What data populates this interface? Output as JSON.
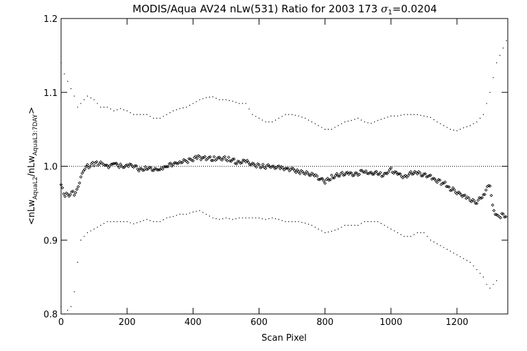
{
  "chart_data": {
    "type": "scatter",
    "title_parts": [
      "MODIS/Aqua AV24 nLw(531) Ratio for 2003 173 ",
      "σ",
      "1",
      "=0.0204"
    ],
    "xlabel": "Scan Pixel",
    "ylabel_parts": [
      "<nLw",
      "AquaL2",
      "/nLw",
      "AquaL3:7DAY",
      ">"
    ],
    "xlim": [
      0,
      1354
    ],
    "ylim": [
      0.8,
      1.2
    ],
    "x_ticks": [
      0,
      200,
      400,
      600,
      800,
      1000,
      1200
    ],
    "x_tick_labels": [
      "0",
      "200",
      "400",
      "600",
      "800",
      "1000",
      "1200"
    ],
    "y_ticks": [
      0.8,
      0.9,
      1.0,
      1.1,
      1.2
    ],
    "y_tick_labels": [
      "0.8",
      "0.9",
      "1.0",
      "1.1",
      "1.2"
    ],
    "reference_line_y": 1.0,
    "grid": false,
    "series": [
      {
        "marker": "diamond",
        "x": [
          0,
          10,
          20,
          30,
          40,
          50,
          60,
          70,
          80,
          100,
          120,
          140,
          160,
          180,
          200,
          220,
          240,
          260,
          280,
          300,
          320,
          340,
          360,
          380,
          400,
          420,
          440,
          460,
          480,
          500,
          520,
          540,
          560,
          580,
          600,
          620,
          640,
          660,
          680,
          700,
          720,
          740,
          760,
          780,
          800,
          820,
          840,
          860,
          880,
          900,
          920,
          940,
          960,
          980,
          1000,
          1020,
          1040,
          1060,
          1080,
          1100,
          1120,
          1140,
          1160,
          1180,
          1200,
          1220,
          1240,
          1260,
          1280,
          1290,
          1300,
          1310,
          1320,
          1330,
          1340,
          1350
        ],
        "y": [
          0.975,
          0.962,
          0.96,
          0.965,
          0.962,
          0.97,
          0.985,
          0.998,
          1.0,
          1.003,
          1.005,
          1.0,
          1.004,
          1.0,
          1.0,
          1.0,
          0.995,
          0.997,
          0.996,
          0.995,
          1.0,
          1.003,
          1.005,
          1.007,
          1.01,
          1.012,
          1.011,
          1.01,
          1.01,
          1.01,
          1.008,
          1.005,
          1.006,
          1.003,
          1.0,
          1.0,
          0.999,
          0.998,
          0.997,
          0.995,
          0.993,
          0.99,
          0.99,
          0.985,
          0.98,
          0.985,
          0.988,
          0.99,
          0.99,
          0.99,
          0.993,
          0.99,
          0.99,
          0.988,
          0.995,
          0.99,
          0.985,
          0.99,
          0.992,
          0.988,
          0.985,
          0.98,
          0.977,
          0.97,
          0.965,
          0.96,
          0.955,
          0.952,
          0.96,
          0.97,
          0.975,
          0.94,
          0.935,
          0.93,
          0.935,
          0.932
        ]
      },
      {
        "marker": "dot",
        "x": [
          0,
          10,
          20,
          30,
          40,
          50,
          60,
          70,
          80,
          100,
          120,
          140,
          160,
          180,
          200,
          220,
          240,
          260,
          280,
          300,
          320,
          340,
          360,
          380,
          400,
          420,
          440,
          460,
          480,
          500,
          520,
          540,
          560,
          580,
          600,
          620,
          640,
          660,
          680,
          700,
          720,
          740,
          760,
          780,
          800,
          820,
          840,
          860,
          880,
          900,
          920,
          940,
          960,
          980,
          1000,
          1020,
          1040,
          1060,
          1080,
          1100,
          1120,
          1140,
          1160,
          1180,
          1200,
          1220,
          1240,
          1260,
          1280,
          1300,
          1310,
          1320,
          1330,
          1340,
          1350
        ],
        "y": [
          1.14,
          1.125,
          1.115,
          1.105,
          1.095,
          1.08,
          1.085,
          1.09,
          1.095,
          1.09,
          1.08,
          1.08,
          1.075,
          1.078,
          1.075,
          1.07,
          1.07,
          1.07,
          1.065,
          1.065,
          1.07,
          1.075,
          1.078,
          1.08,
          1.085,
          1.09,
          1.093,
          1.094,
          1.09,
          1.09,
          1.088,
          1.085,
          1.085,
          1.07,
          1.065,
          1.06,
          1.06,
          1.065,
          1.07,
          1.07,
          1.068,
          1.065,
          1.06,
          1.055,
          1.05,
          1.05,
          1.055,
          1.06,
          1.062,
          1.065,
          1.06,
          1.058,
          1.062,
          1.065,
          1.068,
          1.068,
          1.07,
          1.07,
          1.07,
          1.068,
          1.066,
          1.06,
          1.055,
          1.05,
          1.048,
          1.052,
          1.055,
          1.06,
          1.07,
          1.1,
          1.12,
          1.14,
          1.15,
          1.16,
          1.17
        ]
      },
      {
        "marker": "dot",
        "x": [
          0,
          10,
          20,
          30,
          40,
          50,
          60,
          70,
          80,
          100,
          120,
          140,
          160,
          180,
          200,
          220,
          240,
          260,
          280,
          300,
          320,
          340,
          360,
          380,
          400,
          420,
          440,
          460,
          480,
          500,
          520,
          540,
          560,
          580,
          600,
          620,
          640,
          660,
          680,
          700,
          720,
          740,
          760,
          780,
          800,
          820,
          840,
          860,
          880,
          900,
          920,
          940,
          960,
          980,
          1000,
          1020,
          1040,
          1060,
          1080,
          1100,
          1120,
          1140,
          1160,
          1180,
          1200,
          1220,
          1240,
          1260,
          1280,
          1290,
          1300,
          1310,
          1320
        ],
        "y": [
          0.81,
          0.8,
          0.805,
          0.81,
          0.83,
          0.87,
          0.9,
          0.905,
          0.91,
          0.915,
          0.92,
          0.925,
          0.925,
          0.925,
          0.925,
          0.922,
          0.925,
          0.928,
          0.925,
          0.925,
          0.93,
          0.932,
          0.935,
          0.935,
          0.938,
          0.94,
          0.935,
          0.93,
          0.928,
          0.93,
          0.928,
          0.93,
          0.93,
          0.93,
          0.93,
          0.928,
          0.93,
          0.928,
          0.925,
          0.925,
          0.925,
          0.923,
          0.92,
          0.915,
          0.91,
          0.912,
          0.915,
          0.92,
          0.92,
          0.92,
          0.925,
          0.925,
          0.925,
          0.92,
          0.915,
          0.91,
          0.905,
          0.905,
          0.91,
          0.91,
          0.9,
          0.895,
          0.89,
          0.885,
          0.88,
          0.875,
          0.87,
          0.86,
          0.85,
          0.84,
          0.835,
          0.84,
          0.845
        ]
      }
    ]
  }
}
